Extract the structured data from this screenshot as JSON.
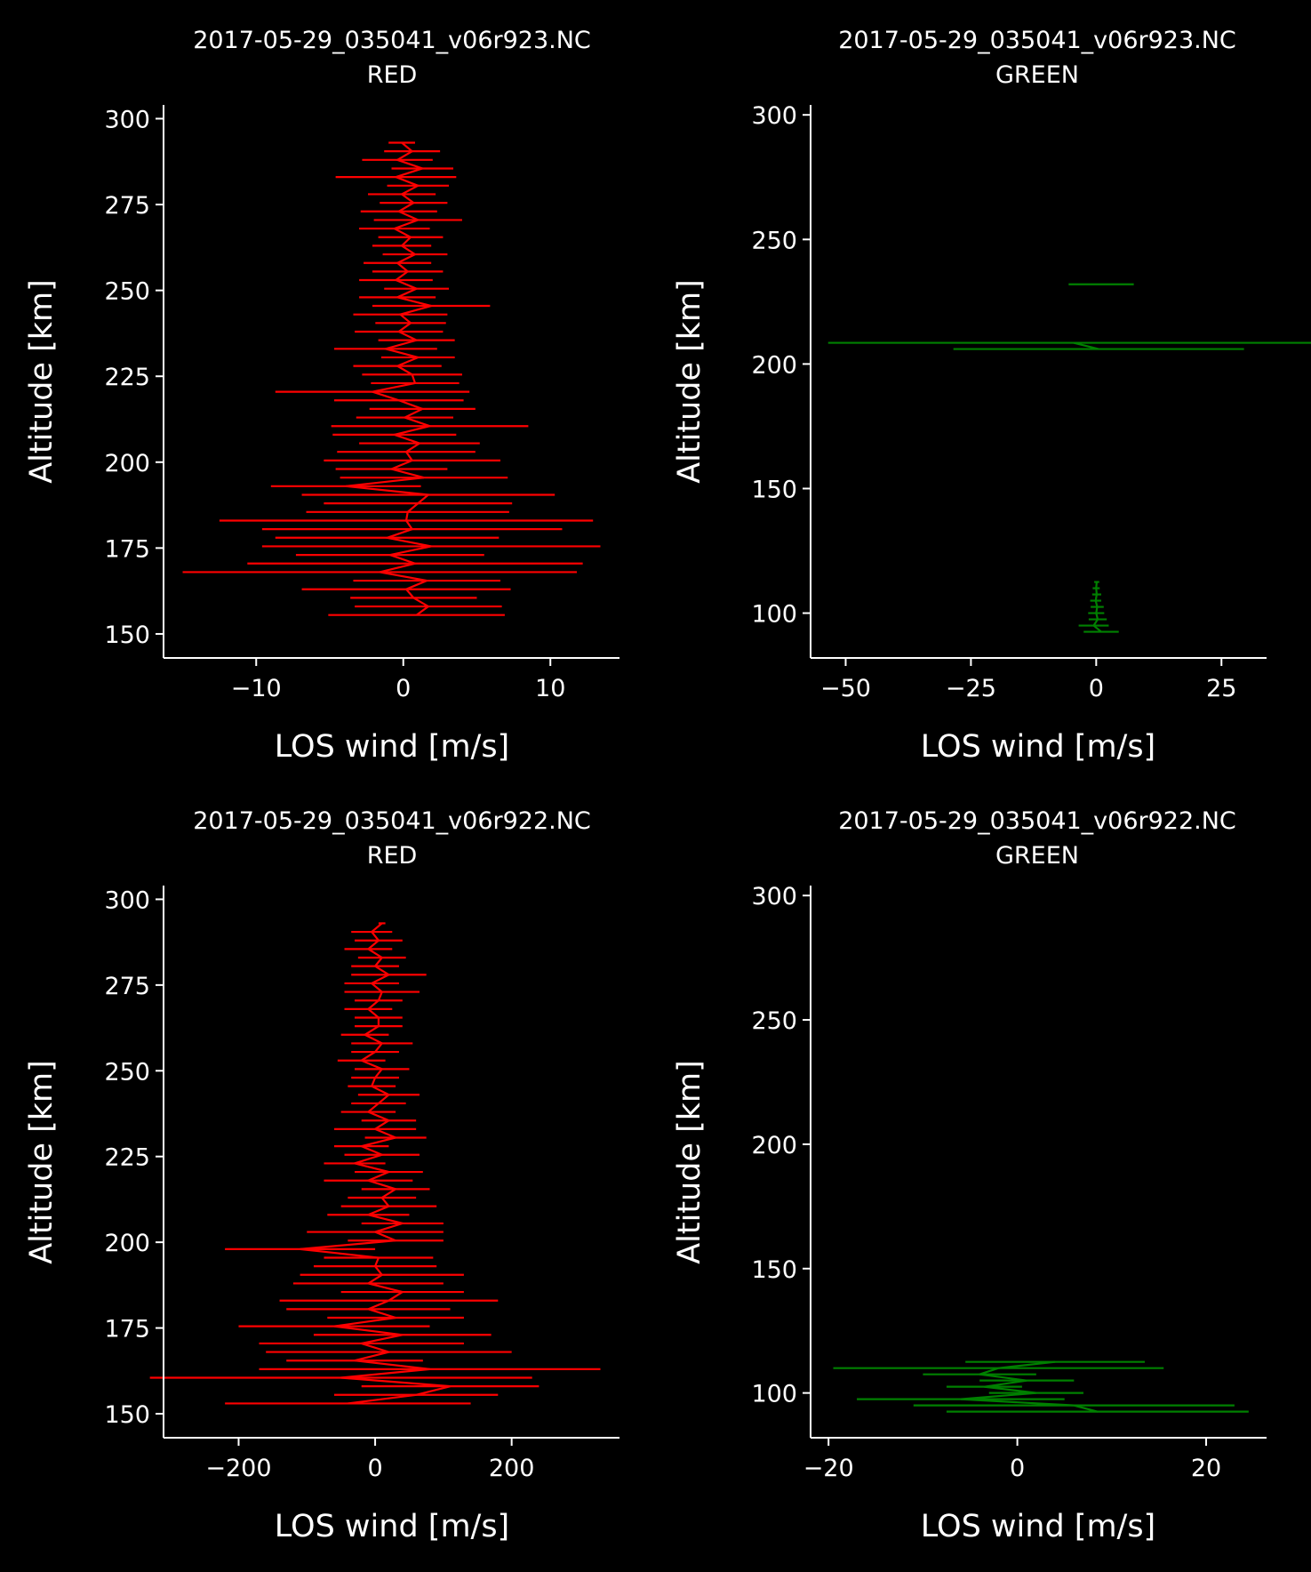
{
  "chart_data": [
    {
      "type": "line",
      "title": "2017-05-29_035041_v06r923.NC",
      "subtitle": "RED",
      "xlabel": "LOS wind [m/s]",
      "ylabel": "Altitude [km]",
      "xlim": [
        -16.3,
        14.7
      ],
      "ylim": [
        143,
        304
      ],
      "xticks": [
        -10,
        0,
        10
      ],
      "xtick_labels": [
        "−10",
        "0",
        "10"
      ],
      "yticks": [
        150,
        175,
        200,
        225,
        250,
        275,
        300
      ],
      "ytick_labels": [
        "150",
        "175",
        "200",
        "225",
        "250",
        "275",
        "300"
      ],
      "grid": false,
      "color": "#ff0000",
      "series": [
        {
          "altitude": [
            155.5,
            158,
            160.5,
            163,
            165.5,
            168,
            170.5,
            173,
            175.5,
            178,
            180.5,
            183,
            185.5,
            188,
            190.5,
            193,
            195.5,
            198,
            200.5,
            203,
            205.5,
            208,
            210.5,
            213,
            215.5,
            218,
            220.5,
            223,
            225.5,
            228,
            230.5,
            233,
            235.5,
            238,
            240.5,
            243,
            245.5,
            248,
            250.5,
            253,
            255.5,
            258,
            260.5,
            263,
            265.5,
            268,
            270.5,
            273,
            275.5,
            278,
            280.5,
            283,
            285.5,
            288,
            290.5,
            293
          ],
          "wind": [
            0.9,
            1.7,
            0.7,
            0.2,
            1.6,
            -1.6,
            0.8,
            -0.9,
            1.9,
            -1.1,
            0.6,
            0.2,
            0.3,
            1.0,
            1.7,
            -3.9,
            1.4,
            -0.8,
            0.6,
            0.2,
            1.1,
            -0.6,
            1.8,
            0.1,
            1.3,
            -0.3,
            -2.1,
            0.8,
            0.6,
            -0.4,
            1.0,
            -1.2,
            0.9,
            -0.3,
            0.5,
            -0.2,
            1.9,
            -0.4,
            0.9,
            -0.5,
            0.3,
            -0.4,
            0.8,
            -0.1,
            0.5,
            -0.6,
            1.0,
            -0.3,
            0.7,
            -0.1,
            1.0,
            -0.5,
            1.3,
            -0.4,
            0.6,
            -0.1
          ],
          "error": [
            6.0,
            5.0,
            4.3,
            7.1,
            5.0,
            13.4,
            11.4,
            6.4,
            11.5,
            7.6,
            10.2,
            12.7,
            6.9,
            6.4,
            8.6,
            5.1,
            5.7,
            3.8,
            6.0,
            4.7,
            4.1,
            4.2,
            6.7,
            3.3,
            3.6,
            4.4,
            6.6,
            3.0,
            3.4,
            3.0,
            2.5,
            3.5,
            2.6,
            3.0,
            2.4,
            3.2,
            4.0,
            2.6,
            2.2,
            2.5,
            2.4,
            2.3,
            2.2,
            2.0,
            2.2,
            2.4,
            3.0,
            2.6,
            2.3,
            2.3,
            2.1,
            4.1,
            2.1,
            2.4,
            1.9,
            0.9
          ]
        }
      ]
    },
    {
      "type": "line",
      "title": "2017-05-29_035041_v06r923.NC",
      "subtitle": "GREEN",
      "xlabel": "LOS wind [m/s]",
      "ylabel": "Altitude [km]",
      "xlim": [
        -57,
        34
      ],
      "ylim": [
        82,
        304
      ],
      "xticks": [
        -50,
        -25,
        0,
        25
      ],
      "xtick_labels": [
        "−50",
        "−25",
        "0",
        "25"
      ],
      "yticks": [
        100,
        150,
        200,
        250,
        300
      ],
      "ytick_labels": [
        "100",
        "150",
        "200",
        "250",
        "300"
      ],
      "grid": false,
      "color": "#008000",
      "series": [
        {
          "altitude": [
            92.5,
            95,
            97.5,
            100,
            102.5,
            105,
            107.5,
            110,
            112.5
          ],
          "wind": [
            1.0,
            -0.5,
            0.3,
            0.0,
            0.2,
            -0.1,
            0.1,
            0.0,
            0.1
          ],
          "error": [
            3.5,
            3.0,
            1.8,
            1.6,
            1.3,
            1.1,
            0.9,
            0.7,
            0.5
          ]
        },
        {
          "altitude": [
            206,
            208.5
          ],
          "wind": [
            0.5,
            -4.5
          ],
          "error": [
            29,
            49
          ]
        },
        {
          "altitude": [
            232
          ],
          "wind": [
            1.0
          ],
          "error": [
            6.5
          ]
        }
      ]
    },
    {
      "type": "line",
      "title": "2017-05-29_035041_v06r922.NC",
      "subtitle": "RED",
      "xlabel": "LOS wind [m/s]",
      "ylabel": "Altitude [km]",
      "xlim": [
        -310,
        358
      ],
      "ylim": [
        143,
        304
      ],
      "xticks": [
        -200,
        0,
        200
      ],
      "xtick_labels": [
        "−200",
        "0",
        "200"
      ],
      "yticks": [
        150,
        175,
        200,
        225,
        250,
        275,
        300
      ],
      "ytick_labels": [
        "150",
        "175",
        "200",
        "225",
        "250",
        "275",
        "300"
      ],
      "grid": false,
      "color": "#ff0000",
      "series": [
        {
          "altitude": [
            153,
            155.5,
            158,
            160.5,
            163,
            165.5,
            168,
            170.5,
            173,
            175.5,
            178,
            180.5,
            183,
            185.5,
            188,
            190.5,
            193,
            195.5,
            198,
            200.5,
            203,
            205.5,
            208,
            210.5,
            213,
            215.5,
            218,
            220.5,
            223,
            225.5,
            228,
            230.5,
            233,
            235.5,
            238,
            240.5,
            243,
            245.5,
            248,
            250.5,
            253,
            255.5,
            258,
            260.5,
            263,
            265.5,
            268,
            270.5,
            273,
            275.5,
            278,
            280.5,
            283,
            285.5,
            288,
            290.5,
            293
          ],
          "wind": [
            -40,
            60,
            110,
            -50,
            80,
            -30,
            20,
            -20,
            40,
            -60,
            30,
            -10,
            20,
            40,
            -10,
            10,
            0,
            5,
            -110,
            30,
            0,
            40,
            -10,
            20,
            10,
            30,
            -10,
            20,
            -30,
            10,
            -20,
            30,
            0,
            20,
            -10,
            5,
            20,
            -5,
            0,
            10,
            -20,
            0,
            10,
            -15,
            5,
            5,
            -10,
            5,
            10,
            -5,
            20,
            0,
            10,
            -10,
            5,
            -5,
            10
          ],
          "error": [
            180,
            120,
            130,
            280,
            250,
            100,
            180,
            150,
            130,
            140,
            100,
            120,
            160,
            90,
            110,
            120,
            90,
            80,
            110,
            70,
            100,
            60,
            60,
            70,
            50,
            50,
            65,
            50,
            45,
            55,
            40,
            45,
            60,
            40,
            40,
            40,
            45,
            35,
            35,
            40,
            35,
            35,
            45,
            35,
            35,
            35,
            35,
            35,
            55,
            40,
            55,
            35,
            35,
            35,
            35,
            30,
            5
          ]
        }
      ]
    },
    {
      "type": "line",
      "title": "2017-05-29_035041_v06r922.NC",
      "subtitle": "GREEN",
      "xlabel": "LOS wind [m/s]",
      "ylabel": "Altitude [km]",
      "xlim": [
        -21.9,
        26.4
      ],
      "ylim": [
        82,
        304
      ],
      "xticks": [
        -20,
        0,
        20
      ],
      "xtick_labels": [
        "−20",
        "0",
        "20"
      ],
      "yticks": [
        100,
        150,
        200,
        250,
        300
      ],
      "ytick_labels": [
        "100",
        "150",
        "200",
        "250",
        "300"
      ],
      "grid": false,
      "color": "#008000",
      "series": [
        {
          "altitude": [
            92.5,
            95,
            97.5,
            100,
            102.5,
            105,
            107.5,
            110,
            112.5
          ],
          "wind": [
            8.5,
            6.0,
            -6.0,
            2.0,
            -3.5,
            1.0,
            -4.0,
            -2.0,
            4.0
          ],
          "error": [
            16.0,
            17.0,
            11.0,
            5.0,
            4.0,
            5.0,
            6.0,
            17.5,
            9.5
          ]
        }
      ]
    }
  ]
}
